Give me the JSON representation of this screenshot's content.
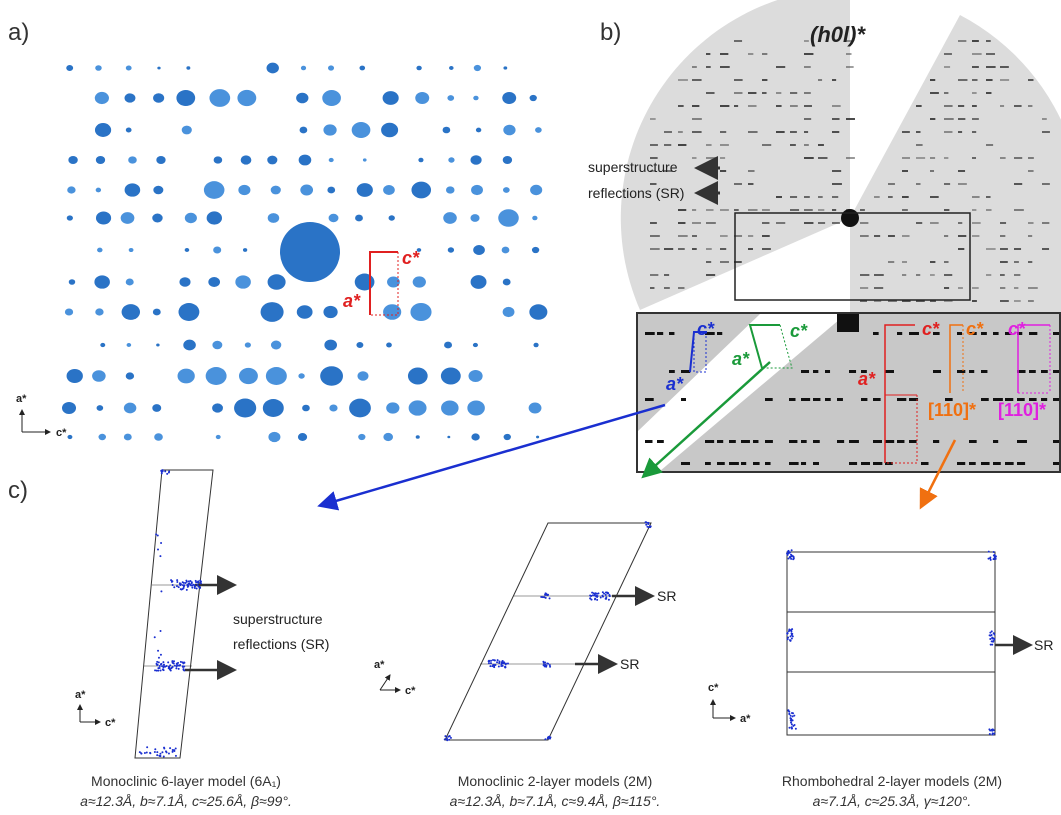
{
  "panels": {
    "a": {
      "label": "a)",
      "axis_a": "a*",
      "axis_c": "c*",
      "cell_a": "a*",
      "cell_c": "c*"
    },
    "b": {
      "label": "b)",
      "title": "(h0l)*",
      "sr_line1": "superstructure",
      "sr_line2": "reflections (SR)",
      "cells": [
        {
          "a": "a*",
          "c": "c*"
        },
        {
          "a": "a*",
          "c": "c*"
        },
        {
          "a": "a*",
          "c": "c*"
        },
        {
          "c": "c*",
          "dir": "[110]*"
        },
        {
          "c": "c*",
          "dir": "[110]*"
        }
      ]
    },
    "c": {
      "label": "c)",
      "sr_line1": "superstructure",
      "sr_line2": "reflections (SR)",
      "models": [
        {
          "axis_a": "a*",
          "axis_c": "c*",
          "caption": "Monoclinic 6-layer model (6A₁)",
          "params": "a≈12.3Å, b≈7.1Å, c≈25.6Å, β≈99°."
        },
        {
          "axis_a": "a*",
          "axis_c": "c*",
          "sr": [
            "SR",
            "SR"
          ],
          "caption": "Monoclinic 2-layer models (2M)",
          "params": "a≈12.3Å, b≈7.1Å, c≈9.4Å, β≈115°."
        },
        {
          "axis_a": "a*",
          "axis_c": "c*",
          "sr": [
            "SR"
          ],
          "caption": "Rhombohedral 2-layer models (2M)",
          "params": "a≈7.1Å, c≈25.3Å, γ≈120°."
        }
      ]
    }
  }
}
